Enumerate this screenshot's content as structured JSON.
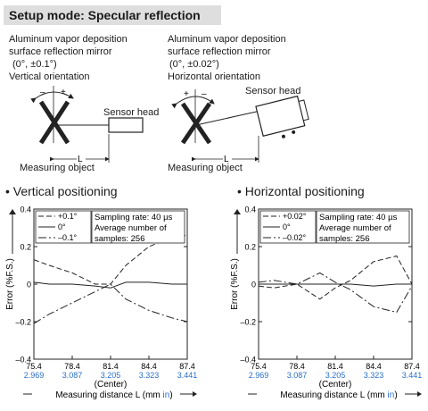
{
  "header": {
    "title": "Setup mode: Specular reflection"
  },
  "setups": [
    {
      "mirror_line1": "Aluminum vapor deposition",
      "mirror_line2": "surface reflection mirror",
      "angle": "(0°, ±0.1°)",
      "orientation": "Vertical orientation",
      "plus": "+",
      "minus": "–",
      "sensor_label": "Sensor head",
      "L_label": "L",
      "object_label": "Measuring object"
    },
    {
      "mirror_line1": "Aluminum vapor deposition",
      "mirror_line2": "surface reflection mirror",
      "angle": "(0°, ±0.02°)",
      "orientation": "Horizontal orientation",
      "plus": "+",
      "minus": "–",
      "sensor_label": "Sensor head",
      "L_label": "L",
      "object_label": "Measuring object"
    }
  ],
  "chart_data": [
    {
      "type": "line",
      "title": "• Vertical positioning",
      "ylabel": "Error (%F.S.)",
      "xlabel": "Measuring distance L (mm in)",
      "center_label": "(Center)",
      "ylim": [
        -0.4,
        0.4
      ],
      "yticks": [
        "0.4",
        "0.2",
        "0",
        "–0.2",
        "–0.4"
      ],
      "xticks_mm": [
        "75.4",
        "78.4",
        "81.4",
        "84.4",
        "87.4"
      ],
      "xticks_in": [
        "2.969",
        "3.087",
        "3.205",
        "3.323",
        "3.441"
      ],
      "x": [
        75.4,
        76.6,
        78.4,
        80.2,
        81.4,
        82.6,
        84.4,
        86.2,
        87.4
      ],
      "info": [
        "Sampling rate: 40 µs",
        "Average number of",
        "samples: 256"
      ],
      "series": [
        {
          "name": "+0.1°",
          "dash": "6,3",
          "values": [
            0.13,
            0.1,
            0.06,
            0.0,
            0.0,
            0.1,
            0.2,
            0.25,
            0.26
          ]
        },
        {
          "name": "0°",
          "dash": "",
          "values": [
            0.01,
            0.0,
            0.0,
            -0.01,
            -0.02,
            0.01,
            0.01,
            0.0,
            0.0
          ]
        },
        {
          "name": "–0.1°",
          "dash": "9,3,2,3",
          "values": [
            -0.21,
            -0.16,
            -0.1,
            -0.04,
            0.0,
            -0.08,
            -0.14,
            -0.18,
            -0.2
          ]
        }
      ]
    },
    {
      "type": "line",
      "title": "• Horizontal positioning",
      "ylabel": "Error (%F.S.)",
      "xlabel": "Measuring distance L (mm in)",
      "center_label": "(Center)",
      "ylim": [
        -0.4,
        0.4
      ],
      "yticks": [
        "0.4",
        "0.2",
        "0",
        "–0.2",
        "–0.4"
      ],
      "xticks_mm": [
        "75.4",
        "78.4",
        "81.4",
        "84.4",
        "87.4"
      ],
      "xticks_in": [
        "2.969",
        "3.087",
        "3.205",
        "3.323",
        "3.441"
      ],
      "x": [
        75.4,
        76.6,
        78.4,
        80.2,
        81.4,
        82.6,
        84.4,
        86.2,
        87.4
      ],
      "info": [
        "Sampling rate: 40 µs",
        "Average number of",
        "samples: 256"
      ],
      "series": [
        {
          "name": "+0.02°",
          "dash": "6,3",
          "values": [
            -0.01,
            -0.02,
            0.0,
            -0.08,
            -0.02,
            0.02,
            0.12,
            0.15,
            0.0
          ]
        },
        {
          "name": "0°",
          "dash": "",
          "values": [
            0.0,
            0.0,
            0.0,
            0.0,
            0.0,
            0.0,
            -0.01,
            0.0,
            0.0
          ]
        },
        {
          "name": "–0.02°",
          "dash": "9,3,2,3",
          "values": [
            0.01,
            0.02,
            0.0,
            0.06,
            0.01,
            -0.03,
            -0.12,
            -0.15,
            -0.01
          ]
        }
      ]
    }
  ]
}
